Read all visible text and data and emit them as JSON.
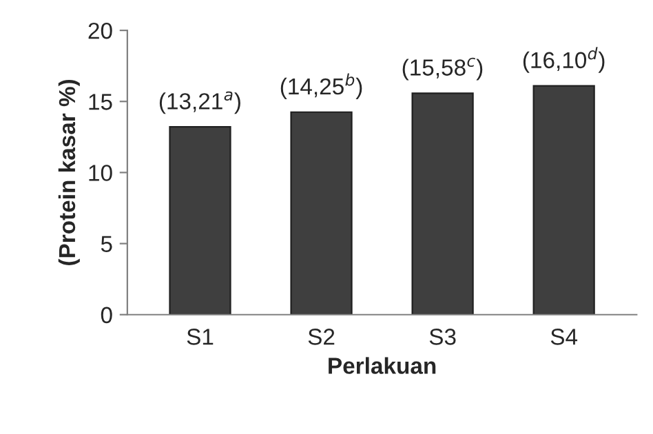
{
  "chart_data": {
    "type": "bar",
    "xlabel": "Perlakuan",
    "ylabel": "(Protein kasar %)",
    "categories": [
      "S1",
      "S2",
      "S3",
      "S4"
    ],
    "values": [
      13.21,
      14.25,
      15.58,
      16.1
    ],
    "value_labels": [
      "(13,21$^{a}$)",
      "(14,25$^{b}$)",
      "(15,58$^{c}$)",
      "(16,10$^{d}$)"
    ],
    "color": "#3f3f3f",
    "ylim": [
      0,
      20
    ],
    "yticks": [
      0,
      5,
      10,
      15,
      20
    ],
    "grid": false,
    "legend": false
  }
}
